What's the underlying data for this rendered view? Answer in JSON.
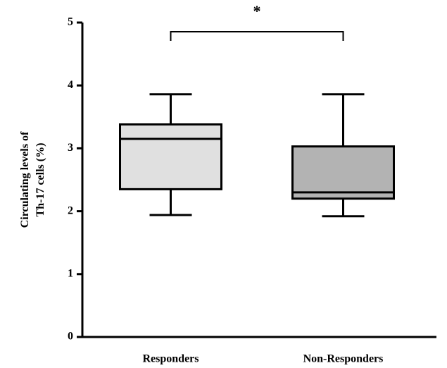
{
  "chart_data": {
    "type": "box",
    "y_label": [
      "Circulating levels of",
      "Th-17 cells (%)"
    ],
    "categories": [
      "Responders",
      "Non-Responders"
    ],
    "whisker_low": [
      1.94,
      1.92
    ],
    "q1": [
      2.35,
      2.2
    ],
    "median": [
      3.15,
      2.3
    ],
    "q3": [
      3.38,
      3.03
    ],
    "whisker_high": [
      3.86,
      3.86
    ],
    "colors": [
      "#e0e0e0",
      "#b3b3b3"
    ],
    "ylim": [
      0,
      5
    ],
    "yticks": [
      0,
      1,
      2,
      3,
      4,
      5
    ],
    "annotation": "*"
  }
}
